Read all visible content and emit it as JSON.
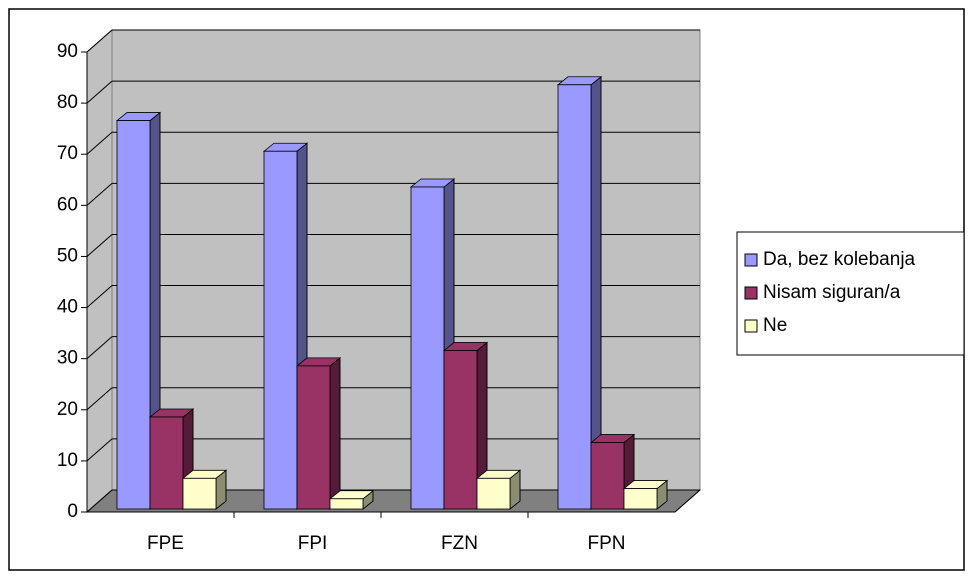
{
  "chart_data": {
    "type": "bar3d",
    "categories": [
      "FPE",
      "FPI",
      "FZN",
      "FPN"
    ],
    "series": [
      {
        "name": "Da, bez kolebanja",
        "color": "#9999ff",
        "values": [
          76,
          70,
          63,
          83
        ]
      },
      {
        "name": "Nisam siguran/a",
        "color": "#993366",
        "values": [
          18,
          28,
          31,
          13
        ]
      },
      {
        "name": "Ne",
        "color": "#ffffcc",
        "values": [
          6,
          2,
          6,
          4
        ]
      }
    ],
    "ylim": [
      0,
      90
    ],
    "yticks": [
      0,
      10,
      20,
      30,
      40,
      50,
      60,
      70,
      80,
      90
    ],
    "grid": true,
    "legend": "right"
  }
}
